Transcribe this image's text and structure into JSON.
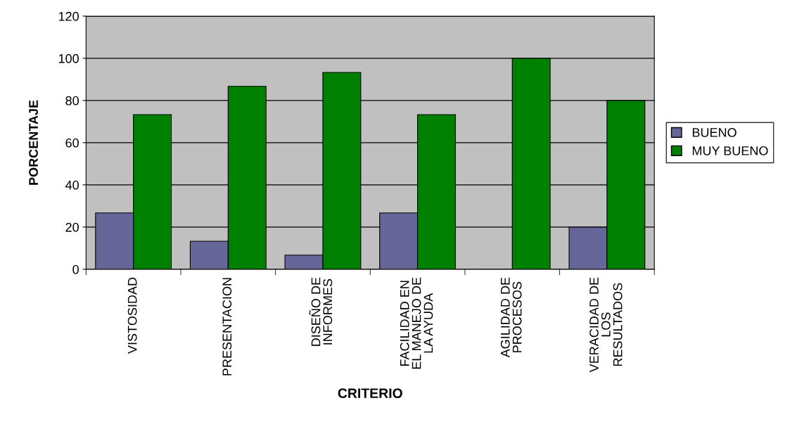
{
  "chart_data": {
    "type": "bar",
    "xlabel": "CRITERIO",
    "ylabel": "PORCENTAJE",
    "categories": [
      "VISTOSIDAD",
      "PRESENTACION",
      "DISEÑO DE\nINFORMES",
      "FACILIDAD EN\nEL MANEJO DE\nLA AYUDA",
      "AGILIDAD DE\nPROCESOS",
      "VERACIDAD DE\nLOS\nRESULTADOS"
    ],
    "series": [
      {
        "name": "BUENO",
        "color": "#666699",
        "values": [
          26.7,
          13.3,
          6.7,
          26.7,
          0,
          20
        ]
      },
      {
        "name": "MUY BUENO",
        "color": "#008000",
        "values": [
          73.3,
          86.7,
          93.3,
          73.3,
          100,
          80
        ]
      }
    ],
    "ylim": [
      0,
      120
    ],
    "yticks": [
      0,
      20,
      40,
      60,
      80,
      100,
      120
    ],
    "grid": "y",
    "legend": "right"
  }
}
